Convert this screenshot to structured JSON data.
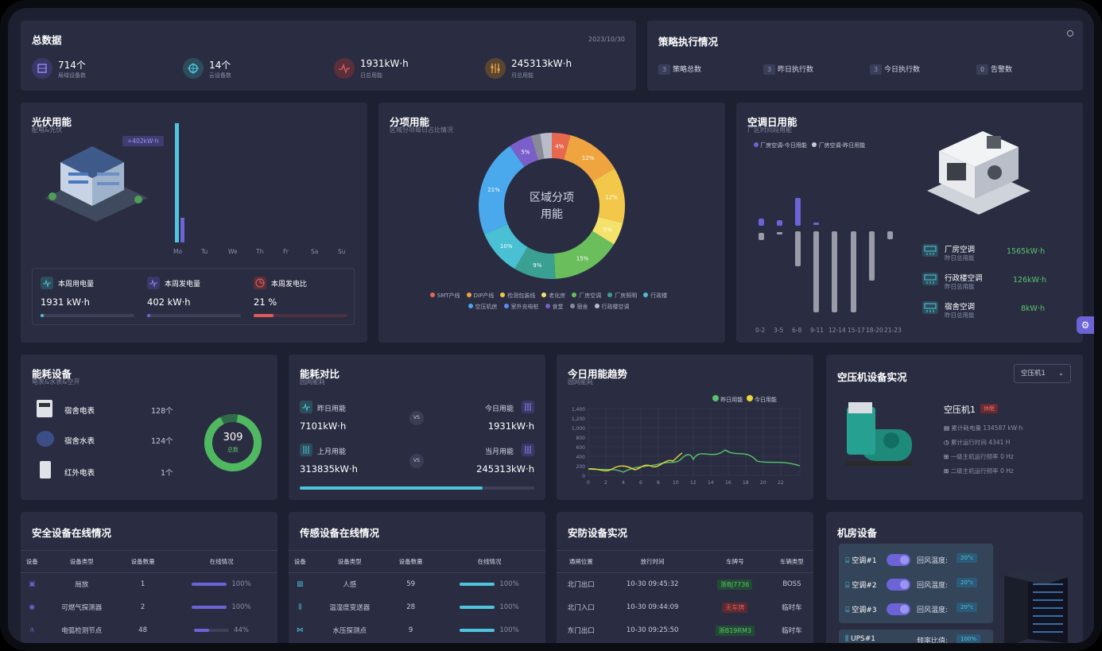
{
  "colors": {
    "accent": "#6b63d6",
    "cyan": "#4ec5dd",
    "green": "#56c46a",
    "red": "#e05a5a",
    "bg": "#1d2030",
    "panel": "#2a2d42"
  },
  "summary": {
    "title": "总数据",
    "date": "2023/10/30",
    "items": [
      {
        "icon": "building-icon",
        "value": "714个",
        "label": "局域设备数"
      },
      {
        "icon": "cloud-icon",
        "value": "14个",
        "label": "云设备数"
      },
      {
        "icon": "pulse-icon",
        "value": "1931kW·h",
        "label": "日总用能"
      },
      {
        "icon": "sliders-icon",
        "value": "245313kW·h",
        "label": "月总用能"
      }
    ]
  },
  "strategy": {
    "title": "策略执行情况",
    "items": [
      {
        "count": "3",
        "label": "策略总数"
      },
      {
        "count": "3",
        "label": "昨日执行数"
      },
      {
        "count": "3",
        "label": "今日执行数"
      },
      {
        "count": "0",
        "label": "告警数"
      }
    ]
  },
  "pv": {
    "title": "光伏用能",
    "subtitle": "配电&光伏",
    "tooltip": "+402kW·h",
    "days": [
      "Mo",
      "Tu",
      "We",
      "Th",
      "Fr",
      "Sa",
      "Su"
    ],
    "stats": [
      {
        "icon": "pulse-icon",
        "label": "本周用电量",
        "value": "1931 kW·h",
        "progress": 0.02,
        "color": "#4ec5dd"
      },
      {
        "icon": "pulse-icon",
        "label": "本周发电量",
        "value": "402 kW·h",
        "progress": 0.02,
        "color": "#6b63d6"
      },
      {
        "icon": "pie-icon",
        "label": "本周发电比",
        "value": "21 %",
        "progress": 0.21,
        "color": "#e05a5a"
      }
    ]
  },
  "breakdown": {
    "title": "分项用能",
    "subtitle": "区域分项每日占比情况",
    "center_line1": "区域分项",
    "center_line2": "用能",
    "legend_row1": [
      "SMT产线",
      "DIP产线",
      "检测包装线",
      "老化房",
      "厂房空调",
      "厂房照明",
      "行政楼"
    ],
    "legend_row2": [
      "空压机房",
      "室外充电桩",
      "食堂",
      "宿舍",
      "行政楼空调"
    ]
  },
  "ac": {
    "title": "空调日用能",
    "subtitle": "厂区时间段用能",
    "legend": [
      "厂房空调-今日用能",
      "厂房空调-昨日用能"
    ],
    "xlabels": [
      "0-2",
      "3-5",
      "6-8",
      "9-11",
      "12-14",
      "15-17",
      "18-20",
      "21-23"
    ],
    "items": [
      {
        "name": "厂房空调",
        "sub": "昨日总用能",
        "value": "1565kW·h"
      },
      {
        "name": "行政楼空调",
        "sub": "昨日总用能",
        "value": "126kW·h"
      },
      {
        "name": "宿舍空调",
        "sub": "昨日总用能",
        "value": "8kW·h"
      }
    ]
  },
  "meters": {
    "title": "能耗设备",
    "subtitle": "电表&水表&空开",
    "items": [
      {
        "name": "宿舍电表",
        "count": "128个"
      },
      {
        "name": "宿舍水表",
        "count": "124个"
      },
      {
        "name": "红外电表",
        "count": "1个"
      }
    ],
    "total": "309",
    "total_label": "总数"
  },
  "compare": {
    "title": "能耗对比",
    "subtitle": "园网能耗",
    "yesterday_label": "昨日用能",
    "yesterday_value": "7101kW·h",
    "today_label": "今日用能",
    "today_value": "1931kW·h",
    "lastmonth_label": "上月用能",
    "lastmonth_value": "313835kW·h",
    "thismonth_label": "当月用能",
    "thismonth_value": "245313kW·h",
    "vs": "VS",
    "progress": 0.78
  },
  "trend": {
    "title": "今日用能趋势",
    "subtitle": "园网能耗",
    "legend": [
      "昨日用能",
      "今日用能"
    ],
    "yticks": [
      "1,400",
      "1,200",
      "1,000",
      "800",
      "600",
      "400",
      "200",
      "0"
    ],
    "xticks": [
      "0",
      "2",
      "4",
      "6",
      "8",
      "10",
      "12",
      "14",
      "16",
      "18",
      "20",
      "22"
    ]
  },
  "compressor": {
    "title": "空压机设备实况",
    "select": "空压机1",
    "name": "空压机1",
    "status": "休眠",
    "rows": [
      "累计耗电量 134587 kW·h",
      "累计运行时间 4341 H",
      "一级主机运行频率 0 Hz",
      "二级主机运行频率 0 Hz"
    ]
  },
  "safety": {
    "title": "安全设备在线情况",
    "headers": [
      "设备",
      "设备类型",
      "设备数量",
      "在线情况"
    ],
    "rows": [
      {
        "type": "局放",
        "count": "1",
        "pct": "100%",
        "val": 1.0
      },
      {
        "type": "可燃气探测器",
        "count": "2",
        "pct": "100%",
        "val": 1.0
      },
      {
        "type": "电弧检测节点",
        "count": "48",
        "pct": "44%",
        "val": 0.44
      }
    ]
  },
  "sensor": {
    "title": "传感设备在线情况",
    "headers": [
      "设备",
      "设备类型",
      "设备数量",
      "在线情况"
    ],
    "rows": [
      {
        "type": "人感",
        "count": "59",
        "pct": "100%",
        "val": 1.0
      },
      {
        "type": "温湿度变送器",
        "count": "28",
        "pct": "100%",
        "val": 1.0
      },
      {
        "type": "水压探测点",
        "count": "9",
        "pct": "100%",
        "val": 1.0
      }
    ]
  },
  "security": {
    "title": "安防设备实况",
    "headers": [
      "通闸位置",
      "放行时间",
      "车牌号",
      "车辆类型"
    ],
    "rows": [
      {
        "pos": "北门出口",
        "time": "10-30 09:45:32",
        "plate": "浙BJ7736",
        "type": "BOSS",
        "plate_color": "green"
      },
      {
        "pos": "北门入口",
        "time": "10-30 09:44:09",
        "plate": "无车牌",
        "type": "临时车",
        "plate_color": "red"
      },
      {
        "pos": "东门出口",
        "time": "10-30 09:25:50",
        "plate": "浙B19RM3",
        "type": "临时车",
        "plate_color": "green"
      }
    ]
  },
  "room": {
    "title": "机房设备",
    "rows": [
      {
        "name": "空调#1",
        "label": "回风温度:",
        "temp": "20°c"
      },
      {
        "name": "空调#2",
        "label": "回风温度:",
        "temp": "20°c"
      },
      {
        "name": "空调#3",
        "label": "回风温度:",
        "temp": "20°c"
      }
    ],
    "ups_name": "UPS#1",
    "ups_label": "频率比值:",
    "ups_value": "100%"
  }
}
